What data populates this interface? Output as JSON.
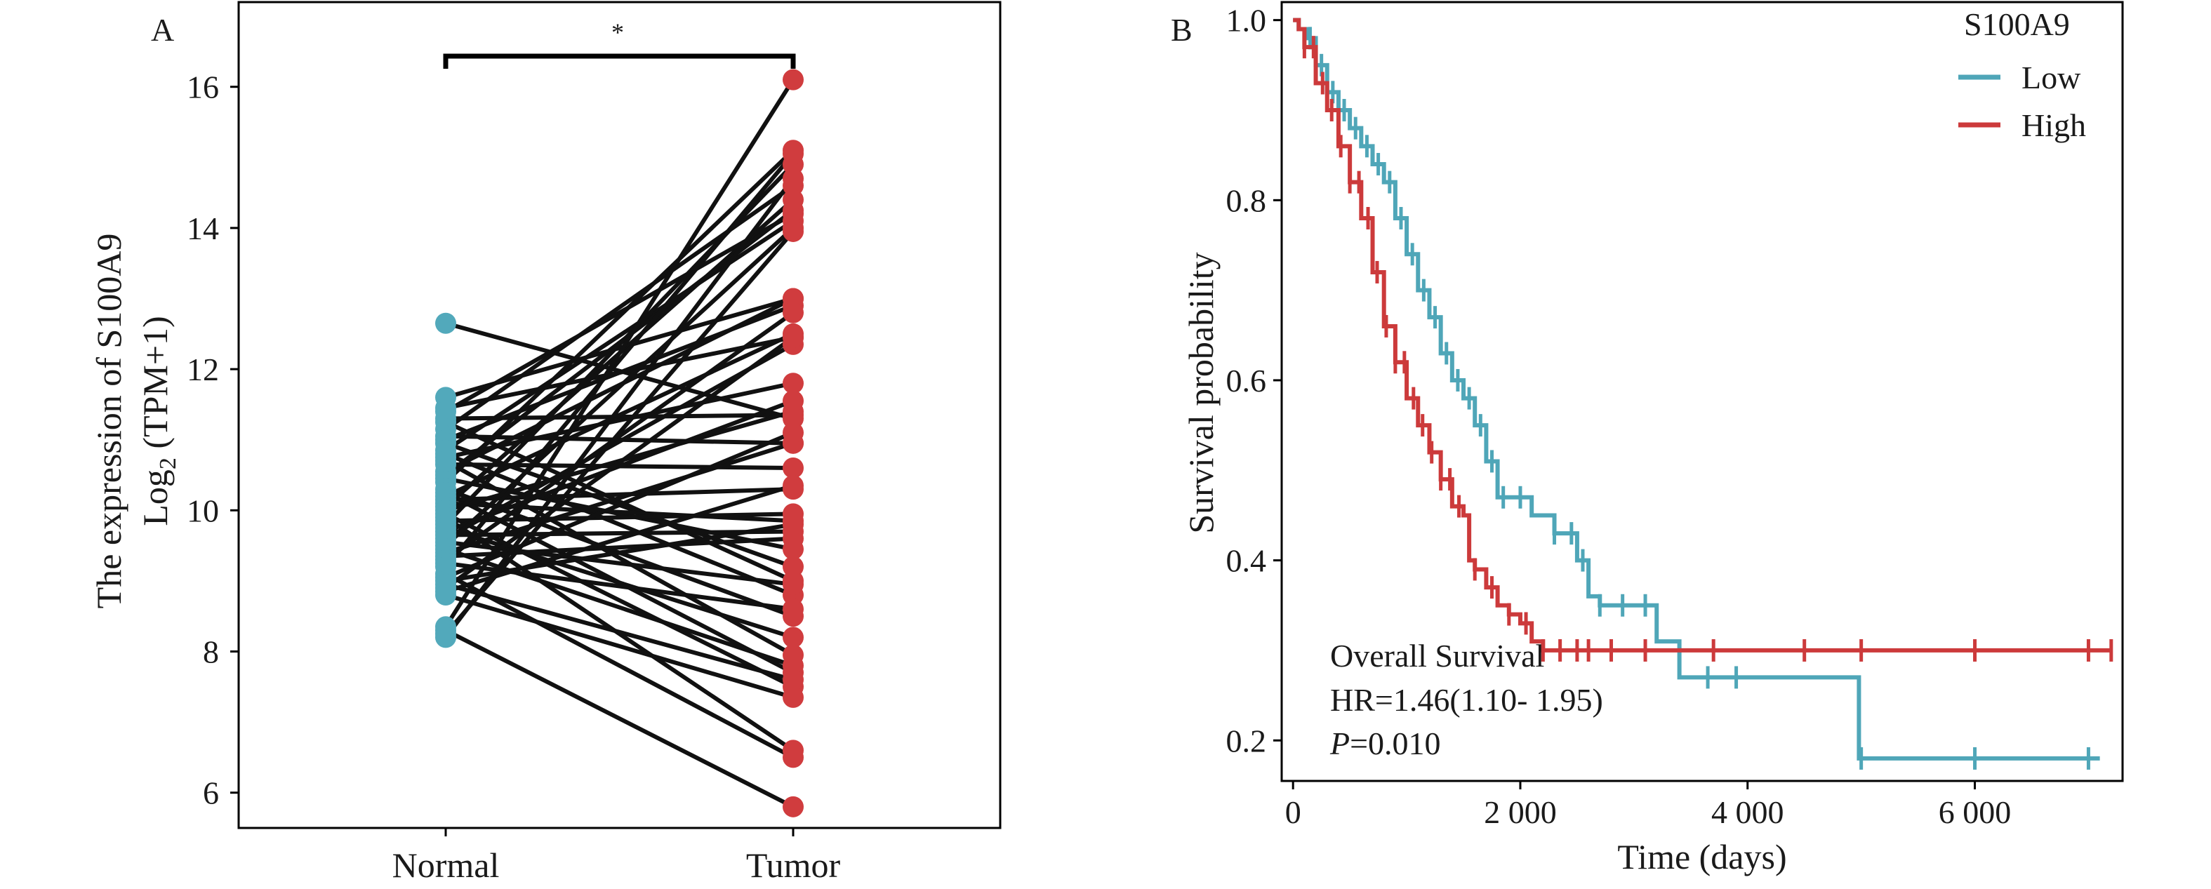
{
  "colors": {
    "normal": "#52a9bb",
    "tumor": "#d03c3e",
    "low": "#4fa6b8",
    "high": "#cc3a3b",
    "line": "#111111"
  },
  "chart_data": [
    {
      "type": "scatter",
      "panel_label": "A",
      "categories": [
        "Normal",
        "Tumor"
      ],
      "ylabel_line1": "The expression of S100A9",
      "ylabel_line2_prefix": "Log",
      "ylabel_line2_sub": "2",
      "ylabel_line2_suffix": " (TPM+1)",
      "ylim": [
        5.5,
        17.2
      ],
      "yticks": [
        "6",
        "8",
        "10",
        "12",
        "14",
        "16"
      ],
      "significance": "*",
      "pairs": [
        [
          12.65,
          11.3
        ],
        [
          11.6,
          13.0
        ],
        [
          11.45,
          12.45
        ],
        [
          11.4,
          14.2
        ],
        [
          11.3,
          11.35
        ],
        [
          11.25,
          9.0
        ],
        [
          11.15,
          14.6
        ],
        [
          11.05,
          10.95
        ],
        [
          11.0,
          12.9
        ],
        [
          10.95,
          9.2
        ],
        [
          10.85,
          14.1
        ],
        [
          10.8,
          8.8
        ],
        [
          10.75,
          11.8
        ],
        [
          10.7,
          7.95
        ],
        [
          10.65,
          10.6
        ],
        [
          10.55,
          13.0
        ],
        [
          10.5,
          14.25
        ],
        [
          10.45,
          9.45
        ],
        [
          10.4,
          15.1
        ],
        [
          10.3,
          8.5
        ],
        [
          10.25,
          7.7
        ],
        [
          10.2,
          12.5
        ],
        [
          10.15,
          10.3
        ],
        [
          10.1,
          9.85
        ],
        [
          10.05,
          14.4
        ],
        [
          10.0,
          11.4
        ],
        [
          9.95,
          7.5
        ],
        [
          9.9,
          6.6
        ],
        [
          9.85,
          9.95
        ],
        [
          9.8,
          14.9
        ],
        [
          9.75,
          8.2
        ],
        [
          9.7,
          11.55
        ],
        [
          9.65,
          9.7
        ],
        [
          9.6,
          12.35
        ],
        [
          9.55,
          8.95
        ],
        [
          9.5,
          14.0
        ],
        [
          9.45,
          7.8
        ],
        [
          9.4,
          10.95
        ],
        [
          9.35,
          9.6
        ],
        [
          9.3,
          12.8
        ],
        [
          9.25,
          8.6
        ],
        [
          9.2,
          15.05
        ],
        [
          9.1,
          6.5
        ],
        [
          9.05,
          11.1
        ],
        [
          9.0,
          9.8
        ],
        [
          8.95,
          7.6
        ],
        [
          8.9,
          12.45
        ],
        [
          8.85,
          10.35
        ],
        [
          8.8,
          7.35
        ],
        [
          8.35,
          16.1
        ],
        [
          8.3,
          5.8
        ],
        [
          8.25,
          13.95
        ],
        [
          8.2,
          14.7
        ]
      ]
    },
    {
      "type": "line",
      "panel_label": "B",
      "xlabel": "Time (days)",
      "ylabel": "Survival probability",
      "xlim": [
        -100,
        7300
      ],
      "ylim": [
        0.155,
        1.02
      ],
      "xticks": [
        "0",
        "2 000",
        "4 000",
        "6 000"
      ],
      "yticks": [
        "0.2",
        "0.4",
        "0.6",
        "0.8",
        "1.0"
      ],
      "legend_title": "S100A9",
      "legend_position": "top-right",
      "annotation_title": "Overall Survival",
      "annotation_hr": "HR=1.46(1.10- 1.95)",
      "annotation_p_label": "P",
      "annotation_p_value": "=0.010",
      "series": [
        {
          "name": "Low",
          "x": [
            0,
            50,
            120,
            200,
            300,
            400,
            500,
            600,
            700,
            800,
            900,
            1000,
            1100,
            1200,
            1300,
            1400,
            1500,
            1600,
            1700,
            1800,
            1900,
            2000,
            2100,
            2300,
            2400,
            2500,
            2600,
            2700,
            2800,
            3000,
            3200,
            3400,
            3600,
            3800,
            4000,
            4200,
            4500,
            4800,
            4980,
            5200,
            6000,
            7100
          ],
          "y": [
            1.0,
            0.99,
            0.98,
            0.95,
            0.92,
            0.9,
            0.88,
            0.86,
            0.84,
            0.82,
            0.78,
            0.74,
            0.7,
            0.67,
            0.63,
            0.6,
            0.58,
            0.55,
            0.51,
            0.47,
            0.47,
            0.47,
            0.45,
            0.43,
            0.43,
            0.4,
            0.36,
            0.35,
            0.35,
            0.35,
            0.31,
            0.27,
            0.27,
            0.27,
            0.27,
            0.27,
            0.27,
            0.27,
            0.18,
            0.18,
            0.18,
            0.18
          ],
          "censors": [
            150,
            250,
            350,
            450,
            550,
            650,
            750,
            850,
            950,
            1050,
            1150,
            1250,
            1350,
            1450,
            1550,
            1650,
            1750,
            1850,
            2000,
            2300,
            2450,
            2550,
            2700,
            2900,
            3100,
            3650,
            3900,
            5000,
            6000,
            7000
          ]
        },
        {
          "name": "High",
          "x": [
            0,
            50,
            100,
            200,
            300,
            400,
            500,
            600,
            700,
            800,
            900,
            1000,
            1100,
            1200,
            1300,
            1400,
            1500,
            1550,
            1600,
            1700,
            1800,
            1900,
            2000,
            2100,
            2200,
            2300,
            2500,
            2700,
            3000,
            4000,
            5000,
            6000,
            7200
          ],
          "y": [
            1.0,
            0.99,
            0.97,
            0.93,
            0.9,
            0.86,
            0.82,
            0.78,
            0.72,
            0.66,
            0.62,
            0.58,
            0.55,
            0.52,
            0.49,
            0.46,
            0.45,
            0.4,
            0.39,
            0.37,
            0.35,
            0.34,
            0.33,
            0.31,
            0.3,
            0.3,
            0.3,
            0.3,
            0.3,
            0.3,
            0.3,
            0.3,
            0.3
          ],
          "censors": [
            100,
            180,
            260,
            340,
            420,
            500,
            580,
            660,
            740,
            820,
            900,
            980,
            1060,
            1140,
            1220,
            1300,
            1380,
            1460,
            1600,
            1750,
            1900,
            2050,
            2200,
            2350,
            2500,
            2600,
            2800,
            3100,
            3700,
            4500,
            5000,
            6000,
            7000,
            7200
          ]
        }
      ]
    }
  ]
}
